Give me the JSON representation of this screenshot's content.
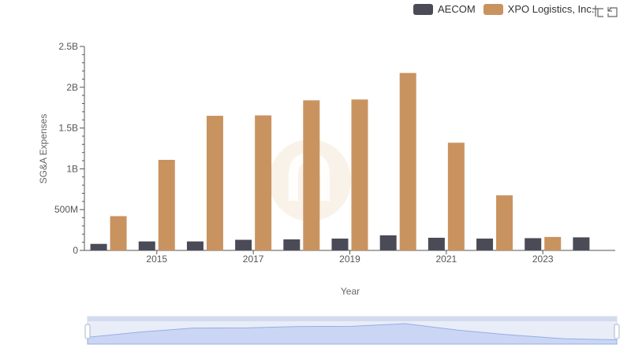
{
  "chart_data": {
    "type": "bar",
    "title": "",
    "xlabel": "Year",
    "ylabel": "SG&A Expenses",
    "categories": [
      "2014",
      "2015",
      "2016",
      "2017",
      "2018",
      "2019",
      "2020",
      "2021",
      "2022",
      "2023",
      "2024"
    ],
    "x_tick_labels": [
      "2015",
      "2017",
      "2019",
      "2021",
      "2023"
    ],
    "y_tick_labels": [
      "0",
      "500M",
      "1B",
      "1.5B",
      "2B",
      "2.5B"
    ],
    "ylim": [
      0,
      2500000000
    ],
    "series": [
      {
        "name": "AECOM",
        "color": "#4a4b56",
        "values": [
          80000000,
          110000000,
          110000000,
          130000000,
          135000000,
          145000000,
          185000000,
          155000000,
          145000000,
          150000000,
          160000000
        ]
      },
      {
        "name": "XPO Logistics, Inc.",
        "color": "#c99360",
        "values": [
          420000000,
          1110000000,
          1650000000,
          1655000000,
          1840000000,
          1850000000,
          2175000000,
          1320000000,
          675000000,
          165000000,
          null
        ]
      }
    ],
    "legend_position": "top-right",
    "grid": false,
    "data_zoom": {
      "start": 0,
      "end": 100
    }
  },
  "legend": {
    "items": [
      {
        "label": "AECOM",
        "color": "#4a4b56"
      },
      {
        "label": "XPO Logistics, Inc.",
        "color": "#c99360"
      }
    ]
  },
  "toolbox": {
    "icons": [
      "zoom-icon",
      "restore-icon"
    ]
  }
}
